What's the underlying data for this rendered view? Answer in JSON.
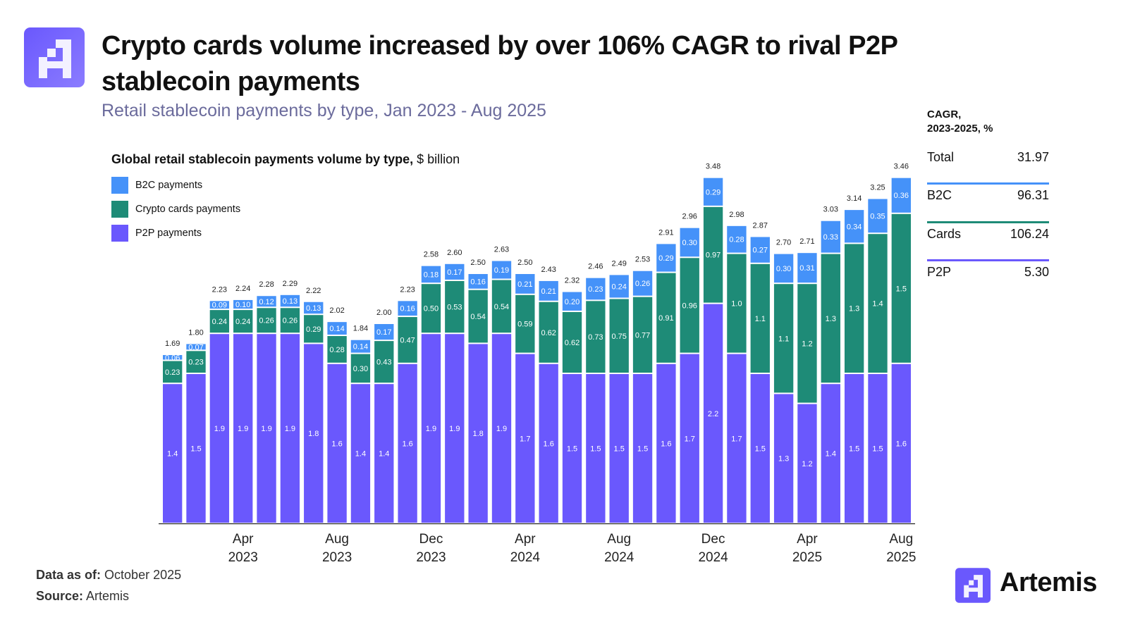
{
  "header": {
    "title": "Crypto cards volume increased by over 106% CAGR to rival P2P stablecoin payments",
    "subtitle": "Retail stablecoin payments by type, Jan 2023 - Aug 2025",
    "logo": "Artemis"
  },
  "colors": {
    "b2c": "#4592f9",
    "cards": "#1e8b77",
    "p2p": "#6a58fd",
    "brand": "#6a58fd"
  },
  "chart_data": {
    "type": "bar",
    "stacked": true,
    "title": "Global retail stablecoin payments volume by type,",
    "title_unit": "$ billion",
    "legend_placement": "top-left",
    "categories": [
      "Jan 2023",
      "Feb 2023",
      "Mar 2023",
      "Apr 2023",
      "May 2023",
      "Jun 2023",
      "Jul 2023",
      "Aug 2023",
      "Sep 2023",
      "Oct 2023",
      "Nov 2023",
      "Dec 2023",
      "Jan 2024",
      "Feb 2024",
      "Mar 2024",
      "Apr 2024",
      "May 2024",
      "Jun 2024",
      "Jul 2024",
      "Aug 2024",
      "Sep 2024",
      "Oct 2024",
      "Nov 2024",
      "Dec 2024",
      "Jan 2025",
      "Feb 2025",
      "Mar 2025",
      "Apr 2025",
      "May 2025",
      "Jun 2025",
      "Jul 2025",
      "Aug 2025"
    ],
    "x_ticks": [
      {
        "index": 3,
        "month": "Apr",
        "year": "2023"
      },
      {
        "index": 7,
        "month": "Aug",
        "year": "2023"
      },
      {
        "index": 11,
        "month": "Dec",
        "year": "2023"
      },
      {
        "index": 15,
        "month": "Apr",
        "year": "2024"
      },
      {
        "index": 19,
        "month": "Aug",
        "year": "2024"
      },
      {
        "index": 23,
        "month": "Dec",
        "year": "2024"
      },
      {
        "index": 27,
        "month": "Apr",
        "year": "2025"
      },
      {
        "index": 31,
        "month": "Aug",
        "year": "2025"
      }
    ],
    "series": [
      {
        "name": "P2P payments",
        "key": "p2p",
        "values": [
          1.4,
          1.5,
          1.9,
          1.9,
          1.9,
          1.9,
          1.8,
          1.6,
          1.4,
          1.4,
          1.6,
          1.9,
          1.9,
          1.8,
          1.9,
          1.7,
          1.6,
          1.5,
          1.5,
          1.5,
          1.5,
          1.6,
          1.7,
          2.2,
          1.7,
          1.5,
          1.3,
          1.2,
          1.4,
          1.5,
          1.5,
          1.6
        ]
      },
      {
        "name": "Crypto cards payments",
        "key": "cards",
        "values": [
          "0.23",
          "0.23",
          "0.24",
          "0.24",
          "0.26",
          "0.26",
          "0.29",
          "0.28",
          "0.30",
          "0.43",
          "0.47",
          "0.50",
          "0.53",
          "0.54",
          "0.54",
          "0.59",
          "0.62",
          "0.62",
          "0.73",
          "0.75",
          "0.77",
          "0.91",
          "0.96",
          "0.97",
          "1.0",
          "1.1",
          "1.1",
          "1.2",
          "1.3",
          "1.3",
          "1.4",
          "1.5"
        ]
      },
      {
        "name": "B2C payments",
        "key": "b2c",
        "values": [
          "0.06",
          "0.07",
          "0.09",
          "0.10",
          "0.12",
          "0.13",
          "0.13",
          "0.14",
          "0.14",
          "0.17",
          "0.16",
          "0.18",
          "0.17",
          "0.16",
          "0.19",
          "0.21",
          "0.21",
          "0.20",
          "0.23",
          "0.24",
          "0.26",
          "0.29",
          "0.30",
          "0.29",
          "0.28",
          "0.27",
          "0.30",
          "0.31",
          "0.33",
          "0.34",
          "0.35",
          "0.36"
        ]
      }
    ],
    "totals": [
      "1.69",
      "1.80",
      "2.23",
      "2.24",
      "2.28",
      "2.29",
      "2.22",
      "2.02",
      "1.84",
      "2.00",
      "2.23",
      "2.58",
      "2.60",
      "2.50",
      "2.63",
      "2.50",
      "2.43",
      "2.32",
      "2.46",
      "2.49",
      "2.53",
      "2.91",
      "2.96",
      "3.48",
      "2.98",
      "2.87",
      "2.70",
      "2.71",
      "3.03",
      "3.14",
      "3.25",
      "3.46"
    ],
    "legend": [
      "B2C payments",
      "Crypto cards payments",
      "P2P payments"
    ]
  },
  "cagr": {
    "heading_line1": "CAGR,",
    "heading_line2": "2023-2025, %",
    "rows": [
      {
        "label": "Total",
        "value": "31.97"
      },
      {
        "label": "B2C",
        "value": "96.31"
      },
      {
        "label": "Cards",
        "value": "106.24"
      },
      {
        "label": "P2P",
        "value": "5.30"
      }
    ]
  },
  "footer": {
    "data_as_of_label": "Data as of:",
    "data_as_of_value": "October 2025",
    "source_label": "Source:",
    "source_value": "Artemis"
  }
}
